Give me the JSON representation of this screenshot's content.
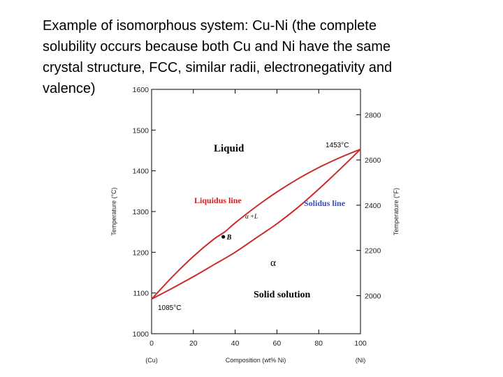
{
  "caption": {
    "lines": [
      "Example of isomorphous system: Cu-Ni (the complete",
      "solubility occurs because both Cu and Ni have the same",
      "crystal structure, FCC, similar radii, electronegativity and",
      "valence)"
    ]
  },
  "colors": {
    "curve": "#cc2a2a",
    "liquidus_label": "#d42020",
    "solidus_label": "#3a4fb8",
    "text": "#000000"
  },
  "chart_data": {
    "type": "line",
    "x_range": [
      0,
      100
    ],
    "y_range": [
      1000,
      1600
    ],
    "y2_range_F": [
      1832,
      2912
    ],
    "x_ticks": [
      0,
      20,
      40,
      60,
      80,
      100
    ],
    "y_ticks": [
      1000,
      1100,
      1200,
      1300,
      1400,
      1500,
      1600
    ],
    "y2_ticks": [
      2000,
      2200,
      2400,
      2600,
      2800
    ],
    "xlabel": "Composition (wt% Ni)",
    "x_end_labels": {
      "left": "(Cu)",
      "right": "(Ni)"
    },
    "ylabel": "Temperature (°C)",
    "y2label": "Temperature (°F)",
    "series": [
      {
        "name": "Liquidus line",
        "x": [
          0,
          10,
          20,
          30,
          35,
          40,
          50,
          60,
          70,
          80,
          90,
          100
        ],
        "y": [
          1085,
          1140,
          1190,
          1233,
          1250,
          1272,
          1312,
          1348,
          1380,
          1408,
          1432,
          1453
        ]
      },
      {
        "name": "Solidus line",
        "x": [
          0,
          10,
          20,
          30,
          40,
          50,
          60,
          70,
          80,
          90,
          100
        ],
        "y": [
          1085,
          1112,
          1140,
          1170,
          1200,
          1235,
          1270,
          1310,
          1355,
          1403,
          1453
        ]
      }
    ],
    "point_B": {
      "x": 35,
      "y": 1250,
      "label": "B"
    },
    "annotations": {
      "liquid": "Liquid",
      "alpha_L": "α +L",
      "alpha": "α",
      "solid_solution": "Solid solution",
      "melt_ni": "1453°C",
      "melt_cu": "1085°C",
      "liquidus_label": "Liquidus line",
      "solidus_label": "Solidus line"
    }
  }
}
